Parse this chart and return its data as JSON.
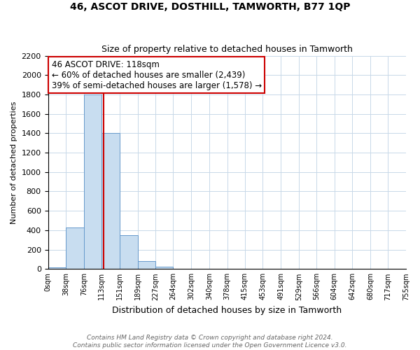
{
  "title": "46, ASCOT DRIVE, DOSTHILL, TAMWORTH, B77 1QP",
  "subtitle": "Size of property relative to detached houses in Tamworth",
  "xlabel": "Distribution of detached houses by size in Tamworth",
  "ylabel": "Number of detached properties",
  "bin_edges": [
    0,
    38,
    76,
    113,
    151,
    189,
    227,
    264,
    302,
    340,
    378,
    415,
    453,
    491,
    529,
    566,
    604,
    642,
    680,
    717,
    755
  ],
  "bar_heights": [
    20,
    430,
    1800,
    1400,
    350,
    80,
    25,
    5,
    0,
    0,
    0,
    0,
    0,
    0,
    0,
    0,
    0,
    0,
    0,
    0
  ],
  "bar_color": "#c8ddf0",
  "bar_edge_color": "#6699cc",
  "annotation_text": "46 ASCOT DRIVE: 118sqm\n← 60% of detached houses are smaller (2,439)\n39% of semi-detached houses are larger (1,578) →",
  "annotation_box_color": "#ffffff",
  "annotation_box_edge": "#cc0000",
  "property_size": 118,
  "property_line_color": "#cc0000",
  "ylim": [
    0,
    2200
  ],
  "yticks": [
    0,
    200,
    400,
    600,
    800,
    1000,
    1200,
    1400,
    1600,
    1800,
    2000,
    2200
  ],
  "tick_labels": [
    "0sqm",
    "38sqm",
    "76sqm",
    "113sqm",
    "151sqm",
    "189sqm",
    "227sqm",
    "264sqm",
    "302sqm",
    "340sqm",
    "378sqm",
    "415sqm",
    "453sqm",
    "491sqm",
    "529sqm",
    "566sqm",
    "604sqm",
    "642sqm",
    "680sqm",
    "717sqm",
    "755sqm"
  ],
  "footer_line1": "Contains HM Land Registry data © Crown copyright and database right 2024.",
  "footer_line2": "Contains public sector information licensed under the Open Government Licence v3.0.",
  "bg_color": "#ffffff",
  "grid_color": "#c8d8e8"
}
